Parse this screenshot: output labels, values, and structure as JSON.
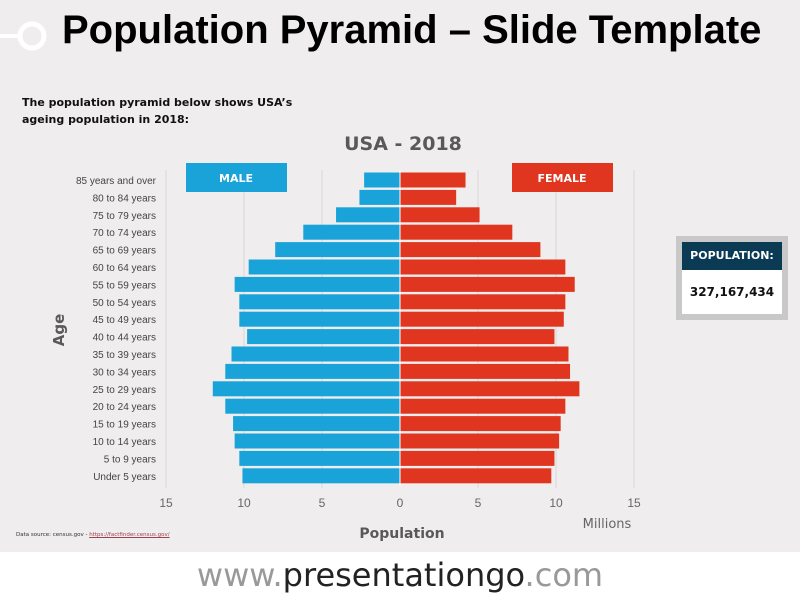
{
  "slide": {
    "title": "Population Pyramid – Slide Template",
    "intro": "The population pyramid below shows USA’s ageing population in 2018:",
    "source_label": "Data source: census.gov - ",
    "source_link": "https://factfinder.census.gov/",
    "footer_pre": "www.",
    "footer_main": "presentationgo",
    "footer_post": ".com"
  },
  "population_box": {
    "label": "POPULATION:",
    "value": "327,167,434"
  },
  "colors": {
    "male": "#1aa3d9",
    "female": "#e0361f",
    "header": "#0b3a55",
    "background": "#efeded"
  },
  "chart_data": {
    "type": "bar",
    "orientation": "horizontal",
    "title": "USA - 2018",
    "xlabel": "Population",
    "ylabel": "Age",
    "unit_label": "Millions",
    "xlim": [
      -15,
      15
    ],
    "xticks": [
      "15",
      "10",
      "5",
      "0",
      "5",
      "10",
      "15"
    ],
    "grid": true,
    "categories": [
      "85 years and over",
      "80 to 84 years",
      "75 to 79 years",
      "70 to 74 years",
      "65 to 69 years",
      "60 to 64 years",
      "55 to 59 years",
      "50 to 54 years",
      "45 to 49 years",
      "40 to 44 years",
      "35 to 39 years",
      "30 to 34 years",
      "25 to 29 years",
      "20 to 24 years",
      "15 to 19 years",
      "10 to 14 years",
      "5 to 9 years",
      "Under 5 years"
    ],
    "series": [
      {
        "name": "MALE",
        "values": [
          2.3,
          2.6,
          4.1,
          6.2,
          8.0,
          9.7,
          10.6,
          10.3,
          10.3,
          9.8,
          10.8,
          11.2,
          12.0,
          11.2,
          10.7,
          10.6,
          10.3,
          10.1
        ]
      },
      {
        "name": "FEMALE",
        "values": [
          4.2,
          3.6,
          5.1,
          7.2,
          9.0,
          10.6,
          11.2,
          10.6,
          10.5,
          9.9,
          10.8,
          10.9,
          11.5,
          10.6,
          10.3,
          10.2,
          9.9,
          9.7
        ]
      }
    ]
  }
}
